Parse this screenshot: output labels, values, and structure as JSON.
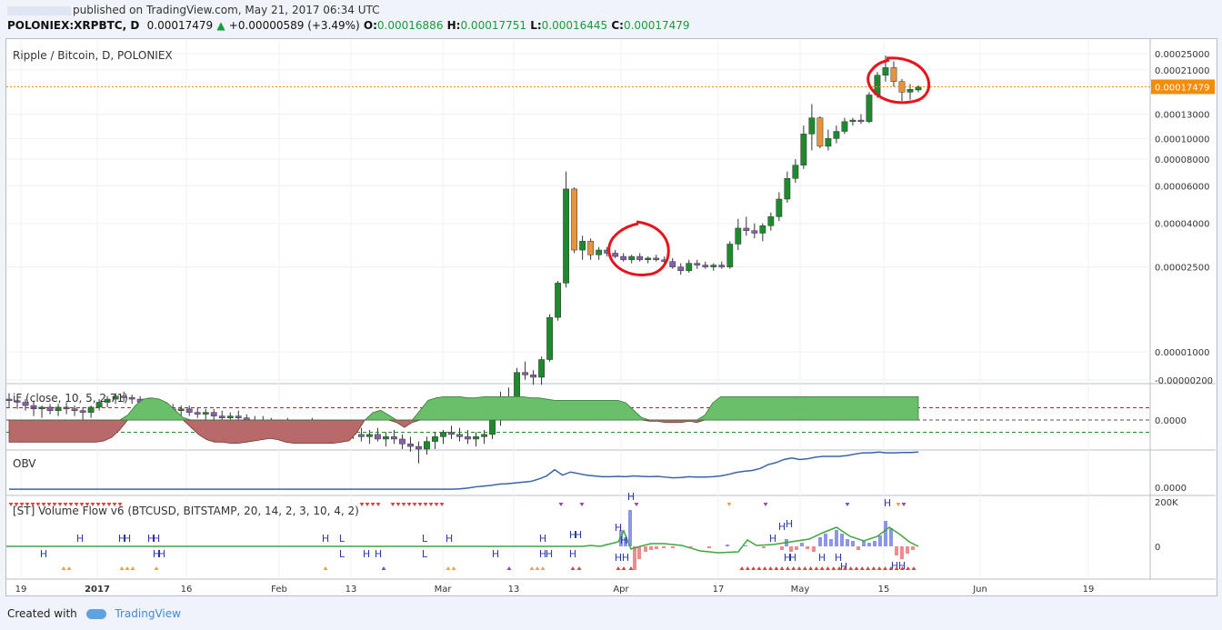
{
  "header": {
    "published": "published on TradingView.com, May 21, 2017 06:34 UTC",
    "symbol": "POLONIEX:XRPBTC, D",
    "last": "0.00017479",
    "change": "+0.00000589 (+3.49%)",
    "o_label": "O:",
    "o": "0.00016886",
    "h_label": "H:",
    "h": "0.00017751",
    "l_label": "L:",
    "l": "0.00016445",
    "c_label": "C:",
    "c": "0.00017479"
  },
  "footer": {
    "created": "Created with",
    "brand": "TradingView"
  },
  "colors": {
    "up": "#1e8a2e",
    "down": "#e8943a",
    "blue": "#4c6fc0",
    "purple": "#8a5fb0",
    "obv": "#3a64a8",
    "vf": "#3da63d",
    "annot": "#e8141c",
    "green_fill": "#6abf6a",
    "red_fill": "#b86a6a",
    "price_badge": "#f48c06"
  },
  "chart_data": [
    {
      "type": "candlestick",
      "title": "Ripple / Bitcoin, D, POLONIEX",
      "y_scale": "log",
      "yticks": [
        "0.00025000",
        "0.00021000",
        "0.00013000",
        "0.00010000",
        "0.00008000",
        "0.00006000",
        "0.00004000",
        "0.00002500",
        "0.00001000",
        "-0.00000200"
      ],
      "ytick_values": [
        0.00025,
        0.00021,
        0.00013,
        0.0001,
        8e-05,
        6e-05,
        4e-05,
        2.5e-05,
        1e-05,
        -2e-06
      ],
      "price_label": "0.00017479",
      "xticks": [
        "19",
        "2017",
        "16",
        "Feb",
        "13",
        "Mar",
        "13",
        "Apr",
        "17",
        "May",
        "15",
        "Jun",
        "19"
      ],
      "annotations": [
        "circle around Apr 2 spike",
        "circle around May 16-17 high"
      ],
      "candles": [
        {
          "o": 6e-06,
          "h": 6.4e-06,
          "l": 5.5e-06,
          "c": 5.9e-06
        },
        {
          "o": 5.9e-06,
          "h": 6.3e-06,
          "l": 5.4e-06,
          "c": 5.8e-06
        },
        {
          "o": 5.8e-06,
          "h": 6e-06,
          "l": 5.3e-06,
          "c": 5.6e-06
        },
        {
          "o": 5.6e-06,
          "h": 5.9e-06,
          "l": 5e-06,
          "c": 5.4e-06
        },
        {
          "o": 5.4e-06,
          "h": 5.6e-06,
          "l": 4.9e-06,
          "c": 5.5e-06
        },
        {
          "o": 5.5e-06,
          "h": 5.7e-06,
          "l": 5.1e-06,
          "c": 5.3e-06
        },
        {
          "o": 5.3e-06,
          "h": 5.7e-06,
          "l": 5e-06,
          "c": 5.5e-06
        },
        {
          "o": 5.5e-06,
          "h": 5.8e-06,
          "l": 5.1e-06,
          "c": 5.4e-06
        },
        {
          "o": 5.4e-06,
          "h": 5.6e-06,
          "l": 5e-06,
          "c": 5.3e-06
        },
        {
          "o": 5.3e-06,
          "h": 5.5e-06,
          "l": 4.5e-06,
          "c": 5.2e-06
        },
        {
          "o": 5.2e-06,
          "h": 5.6e-06,
          "l": 4.9e-06,
          "c": 5.5e-06
        },
        {
          "o": 5.5e-06,
          "h": 6e-06,
          "l": 5.3e-06,
          "c": 5.8e-06
        },
        {
          "o": 5.8e-06,
          "h": 6.2e-06,
          "l": 5.5e-06,
          "c": 6e-06
        },
        {
          "o": 6e-06,
          "h": 6.4e-06,
          "l": 5.7e-06,
          "c": 6.2e-06
        },
        {
          "o": 6.2e-06,
          "h": 6.5e-06,
          "l": 5.8e-06,
          "c": 6.1e-06
        },
        {
          "o": 6.1e-06,
          "h": 6.3e-06,
          "l": 5.7e-06,
          "c": 6e-06
        },
        {
          "o": 6e-06,
          "h": 6.2e-06,
          "l": 5.6e-06,
          "c": 5.8e-06
        },
        {
          "o": 5.8e-06,
          "h": 6.1e-06,
          "l": 5.5e-06,
          "c": 5.7e-06
        },
        {
          "o": 5.7e-06,
          "h": 6e-06,
          "l": 5.4e-06,
          "c": 5.6e-06
        },
        {
          "o": 5.6e-06,
          "h": 5.8e-06,
          "l": 5.2e-06,
          "c": 5.4e-06
        },
        {
          "o": 5.4e-06,
          "h": 5.7e-06,
          "l": 5.1e-06,
          "c": 5.3e-06
        },
        {
          "o": 5.3e-06,
          "h": 5.6e-06,
          "l": 5e-06,
          "c": 5.4e-06
        },
        {
          "o": 5.4e-06,
          "h": 5.6e-06,
          "l": 5e-06,
          "c": 5.2e-06
        },
        {
          "o": 5.2e-06,
          "h": 5.5e-06,
          "l": 4.9e-06,
          "c": 5.1e-06
        },
        {
          "o": 5.1e-06,
          "h": 5.4e-06,
          "l": 4.8e-06,
          "c": 5.2e-06
        },
        {
          "o": 5.2e-06,
          "h": 5.4e-06,
          "l": 4.8e-06,
          "c": 5e-06
        },
        {
          "o": 5e-06,
          "h": 5.3e-06,
          "l": 4.7e-06,
          "c": 4.9e-06
        },
        {
          "o": 4.9e-06,
          "h": 5.2e-06,
          "l": 4.6e-06,
          "c": 5e-06
        },
        {
          "o": 5e-06,
          "h": 5.3e-06,
          "l": 4.7e-06,
          "c": 4.9e-06
        },
        {
          "o": 4.9e-06,
          "h": 5.1e-06,
          "l": 4.5e-06,
          "c": 4.7e-06
        },
        {
          "o": 4.7e-06,
          "h": 5e-06,
          "l": 4.4e-06,
          "c": 4.8e-06
        },
        {
          "o": 4.8e-06,
          "h": 5e-06,
          "l": 4.4e-06,
          "c": 4.6e-06
        },
        {
          "o": 4.6e-06,
          "h": 4.9e-06,
          "l": 4.3e-06,
          "c": 4.5e-06
        },
        {
          "o": 4.5e-06,
          "h": 4.8e-06,
          "l": 4.2e-06,
          "c": 4.6e-06
        },
        {
          "o": 4.6e-06,
          "h": 4.9e-06,
          "l": 4.3e-06,
          "c": 4.4e-06
        },
        {
          "o": 4.4e-06,
          "h": 4.7e-06,
          "l": 4.1e-06,
          "c": 4.5e-06
        },
        {
          "o": 4.5e-06,
          "h": 4.8e-06,
          "l": 4.2e-06,
          "c": 4.6e-06
        },
        {
          "o": 4.6e-06,
          "h": 4.9e-06,
          "l": 4.3e-06,
          "c": 4.4e-06
        },
        {
          "o": 4.4e-06,
          "h": 4.7e-06,
          "l": 4.1e-06,
          "c": 4.3e-06
        },
        {
          "o": 4.3e-06,
          "h": 4.6e-06,
          "l": 4e-06,
          "c": 4.2e-06
        },
        {
          "o": 4.2e-06,
          "h": 4.5e-06,
          "l": 3.9e-06,
          "c": 4.3e-06
        },
        {
          "o": 4.3e-06,
          "h": 4.6e-06,
          "l": 4e-06,
          "c": 4.2e-06
        },
        {
          "o": 4.2e-06,
          "h": 4.5e-06,
          "l": 3.9e-06,
          "c": 4.1e-06
        },
        {
          "o": 4.1e-06,
          "h": 4.4e-06,
          "l": 3.8e-06,
          "c": 4e-06
        },
        {
          "o": 4e-06,
          "h": 4.3e-06,
          "l": 3.7e-06,
          "c": 4.1e-06
        },
        {
          "o": 4.1e-06,
          "h": 4.4e-06,
          "l": 3.8e-06,
          "c": 3.9e-06
        },
        {
          "o": 3.9e-06,
          "h": 4.2e-06,
          "l": 3.6e-06,
          "c": 4e-06
        },
        {
          "o": 4e-06,
          "h": 4.3e-06,
          "l": 3.7e-06,
          "c": 3.9e-06
        },
        {
          "o": 3.9e-06,
          "h": 4.1e-06,
          "l": 3.5e-06,
          "c": 3.7e-06
        },
        {
          "o": 3.7e-06,
          "h": 4e-06,
          "l": 3.4e-06,
          "c": 3.6e-06
        },
        {
          "o": 3.6e-06,
          "h": 3.8e-06,
          "l": 3e-06,
          "c": 3.5e-06
        },
        {
          "o": 3.5e-06,
          "h": 4e-06,
          "l": 3.3e-06,
          "c": 3.8e-06
        },
        {
          "o": 3.8e-06,
          "h": 4.2e-06,
          "l": 3.5e-06,
          "c": 4e-06
        },
        {
          "o": 4e-06,
          "h": 4.3e-06,
          "l": 3.7e-06,
          "c": 4.2e-06
        },
        {
          "o": 4.2e-06,
          "h": 4.5e-06,
          "l": 3.9e-06,
          "c": 4.1e-06
        },
        {
          "o": 4.1e-06,
          "h": 4.4e-06,
          "l": 3.8e-06,
          "c": 4e-06
        },
        {
          "o": 4e-06,
          "h": 4.3e-06,
          "l": 3.7e-06,
          "c": 3.9e-06
        },
        {
          "o": 3.9e-06,
          "h": 4.2e-06,
          "l": 3.6e-06,
          "c": 4e-06
        },
        {
          "o": 4e-06,
          "h": 4.3e-06,
          "l": 3.7e-06,
          "c": 4.1e-06
        },
        {
          "o": 4.1e-06,
          "h": 5e-06,
          "l": 3.9e-06,
          "c": 4.8e-06
        },
        {
          "o": 4.8e-06,
          "h": 6.5e-06,
          "l": 4.5e-06,
          "c": 6e-06
        },
        {
          "o": 6e-06,
          "h": 6.8e-06,
          "l": 5.6e-06,
          "c": 5.8e-06
        },
        {
          "o": 5.8e-06,
          "h": 8.4e-06,
          "l": 5.5e-06,
          "c": 8e-06
        },
        {
          "o": 8e-06,
          "h": 9e-06,
          "l": 7.4e-06,
          "c": 7.8e-06
        },
        {
          "o": 7.8e-06,
          "h": 8.2e-06,
          "l": 7e-06,
          "c": 7.6e-06
        },
        {
          "o": 7.6e-06,
          "h": 9.5e-06,
          "l": 7e-06,
          "c": 9.2e-06
        },
        {
          "o": 9.2e-06,
          "h": 1.5e-05,
          "l": 9e-06,
          "c": 1.45e-05
        },
        {
          "o": 1.45e-05,
          "h": 2.15e-05,
          "l": 1.4e-05,
          "c": 2.1e-05
        },
        {
          "o": 2.1e-05,
          "h": 7e-05,
          "l": 2e-05,
          "c": 5.8e-05
        },
        {
          "o": 5.8e-05,
          "h": 5.9e-05,
          "l": 2.9e-05,
          "c": 3e-05
        },
        {
          "o": 3e-05,
          "h": 3.5e-05,
          "l": 2.7e-05,
          "c": 3.3e-05
        },
        {
          "o": 3.3e-05,
          "h": 3.4e-05,
          "l": 2.7e-05,
          "c": 2.85e-05
        },
        {
          "o": 2.85e-05,
          "h": 3.1e-05,
          "l": 2.7e-05,
          "c": 3e-05
        },
        {
          "o": 3e-05,
          "h": 3.1e-05,
          "l": 2.8e-05,
          "c": 2.9e-05
        },
        {
          "o": 2.9e-05,
          "h": 3e-05,
          "l": 2.75e-05,
          "c": 2.8e-05
        },
        {
          "o": 2.8e-05,
          "h": 2.9e-05,
          "l": 2.65e-05,
          "c": 2.7e-05
        },
        {
          "o": 2.7e-05,
          "h": 2.85e-05,
          "l": 2.6e-05,
          "c": 2.8e-05
        },
        {
          "o": 2.8e-05,
          "h": 2.9e-05,
          "l": 2.65e-05,
          "c": 2.7e-05
        },
        {
          "o": 2.7e-05,
          "h": 2.8e-05,
          "l": 2.6e-05,
          "c": 2.75e-05
        },
        {
          "o": 2.75e-05,
          "h": 2.85e-05,
          "l": 2.65e-05,
          "c": 2.7e-05
        },
        {
          "o": 2.7e-05,
          "h": 2.8e-05,
          "l": 2.55e-05,
          "c": 2.65e-05
        },
        {
          "o": 2.65e-05,
          "h": 2.75e-05,
          "l": 2.45e-05,
          "c": 2.5e-05
        },
        {
          "o": 2.5e-05,
          "h": 2.6e-05,
          "l": 2.3e-05,
          "c": 2.4e-05
        },
        {
          "o": 2.4e-05,
          "h": 2.7e-05,
          "l": 2.35e-05,
          "c": 2.6e-05
        },
        {
          "o": 2.6e-05,
          "h": 2.7e-05,
          "l": 2.45e-05,
          "c": 2.55e-05
        },
        {
          "o": 2.55e-05,
          "h": 2.65e-05,
          "l": 2.45e-05,
          "c": 2.5e-05
        },
        {
          "o": 2.5e-05,
          "h": 2.6e-05,
          "l": 2.4e-05,
          "c": 2.55e-05
        },
        {
          "o": 2.55e-05,
          "h": 2.65e-05,
          "l": 2.45e-05,
          "c": 2.5e-05
        },
        {
          "o": 2.5e-05,
          "h": 3.3e-05,
          "l": 2.45e-05,
          "c": 3.2e-05
        },
        {
          "o": 3.2e-05,
          "h": 4.2e-05,
          "l": 3e-05,
          "c": 3.8e-05
        },
        {
          "o": 3.8e-05,
          "h": 4.3e-05,
          "l": 3.5e-05,
          "c": 3.7e-05
        },
        {
          "o": 3.7e-05,
          "h": 4e-05,
          "l": 3.4e-05,
          "c": 3.6e-05
        },
        {
          "o": 3.6e-05,
          "h": 4e-05,
          "l": 3.3e-05,
          "c": 3.9e-05
        },
        {
          "o": 3.9e-05,
          "h": 4.5e-05,
          "l": 3.7e-05,
          "c": 4.3e-05
        },
        {
          "o": 4.3e-05,
          "h": 5.6e-05,
          "l": 4.1e-05,
          "c": 5.2e-05
        },
        {
          "o": 5.2e-05,
          "h": 7e-05,
          "l": 5e-05,
          "c": 6.5e-05
        },
        {
          "o": 6.5e-05,
          "h": 8e-05,
          "l": 6.2e-05,
          "c": 7.5e-05
        },
        {
          "o": 7.5e-05,
          "h": 0.000115,
          "l": 7.2e-05,
          "c": 0.000105
        },
        {
          "o": 0.000105,
          "h": 0.000145,
          "l": 8.8e-05,
          "c": 0.000125
        },
        {
          "o": 0.000125,
          "h": 0.000127,
          "l": 9e-05,
          "c": 9.2e-05
        },
        {
          "o": 9.2e-05,
          "h": 0.00011,
          "l": 8.8e-05,
          "c": 0.0001
        },
        {
          "o": 0.0001,
          "h": 0.000115,
          "l": 9.5e-05,
          "c": 0.000108
        },
        {
          "o": 0.000108,
          "h": 0.000125,
          "l": 0.000105,
          "c": 0.00012
        },
        {
          "o": 0.00012,
          "h": 0.000125,
          "l": 0.000115,
          "c": 0.000122
        },
        {
          "o": 0.000122,
          "h": 0.00013,
          "l": 0.000117,
          "c": 0.00012
        },
        {
          "o": 0.00012,
          "h": 0.000165,
          "l": 0.000118,
          "c": 0.00016
        },
        {
          "o": 0.00016,
          "h": 0.000205,
          "l": 0.000155,
          "c": 0.000198
        },
        {
          "o": 0.000198,
          "h": 0.000245,
          "l": 0.000185,
          "c": 0.000215
        },
        {
          "o": 0.000215,
          "h": 0.00023,
          "l": 0.000175,
          "c": 0.000185
        },
        {
          "o": 0.000185,
          "h": 0.00019,
          "l": 0.00015,
          "c": 0.000165
        },
        {
          "o": 0.000165,
          "h": 0.00018,
          "l": 0.000152,
          "c": 0.00017
        },
        {
          "o": 0.0001689,
          "h": 0.0001775,
          "l": 0.0001645,
          "c": 0.0001748
        }
      ]
    },
    {
      "type": "area",
      "title": "iF (close, 10, 5, 2.71)",
      "yticks": [
        "0.0000"
      ],
      "levels": [
        0.5,
        0,
        -0.5
      ],
      "values": [
        -0.9,
        -0.9,
        -0.9,
        -0.9,
        -0.9,
        -0.9,
        -0.9,
        -0.9,
        -0.9,
        -0.9,
        -0.9,
        -0.9,
        -0.85,
        -0.7,
        -0.4,
        0.2,
        0.6,
        0.85,
        0.9,
        0.85,
        0.7,
        0.4,
        0.1,
        -0.3,
        -0.6,
        -0.8,
        -0.9,
        -0.9,
        -0.95,
        -0.95,
        -0.9,
        -0.85,
        -0.8,
        -0.75,
        -0.8,
        -0.9,
        -0.95,
        -0.95,
        -0.95,
        -0.95,
        -0.95,
        -0.95,
        -0.9,
        -0.85,
        -0.5,
        0.0,
        0.3,
        0.4,
        0.2,
        -0.1,
        -0.3,
        -0.1,
        0.4,
        0.8,
        0.9,
        0.95,
        0.95,
        0.95,
        0.9,
        0.9,
        0.95,
        0.95,
        0.95,
        0.95,
        0.95,
        0.95,
        0.9,
        0.9,
        0.85,
        0.8,
        0.8,
        0.8,
        0.8,
        0.8,
        0.8,
        0.8,
        0.8,
        0.8,
        0.7,
        0.4,
        0.1,
        -0.05,
        -0.05,
        -0.1,
        -0.1,
        -0.1,
        -0.05,
        -0.1,
        0.2,
        0.7,
        0.95,
        0.95,
        0.95,
        0.95,
        0.95,
        0.95,
        0.95,
        0.95,
        0.95,
        0.95,
        0.95,
        0.95,
        0.95,
        0.95,
        0.95,
        0.95,
        0.95,
        0.95,
        0.95,
        0.95,
        0.95,
        0.95,
        0.95,
        0.95,
        0.95,
        0.95
      ]
    },
    {
      "type": "line",
      "title": "OBV",
      "yticks": [
        "0.0000"
      ],
      "values": [
        0.02,
        0.02,
        0.02,
        0.02,
        0.02,
        0.02,
        0.02,
        0.02,
        0.02,
        0.02,
        0.02,
        0.02,
        0.02,
        0.02,
        0.02,
        0.02,
        0.02,
        0.02,
        0.02,
        0.02,
        0.02,
        0.02,
        0.02,
        0.02,
        0.02,
        0.02,
        0.02,
        0.02,
        0.02,
        0.02,
        0.02,
        0.02,
        0.02,
        0.02,
        0.02,
        0.02,
        0.02,
        0.02,
        0.02,
        0.02,
        0.02,
        0.02,
        0.02,
        0.02,
        0.02,
        0.02,
        0.02,
        0.02,
        0.02,
        0.02,
        0.02,
        0.02,
        0.02,
        0.02,
        0.02,
        0.02,
        0.02,
        0.03,
        0.05,
        0.08,
        0.1,
        0.12,
        0.15,
        0.16,
        0.18,
        0.2,
        0.22,
        0.28,
        0.36,
        0.52,
        0.38,
        0.46,
        0.42,
        0.38,
        0.36,
        0.34,
        0.34,
        0.35,
        0.34,
        0.36,
        0.35,
        0.34,
        0.35,
        0.33,
        0.31,
        0.32,
        0.34,
        0.33,
        0.33,
        0.34,
        0.36,
        0.4,
        0.45,
        0.48,
        0.5,
        0.55,
        0.65,
        0.7,
        0.78,
        0.82,
        0.78,
        0.8,
        0.84,
        0.86,
        0.86,
        0.86,
        0.88,
        0.92,
        0.95,
        0.95,
        0.97,
        0.95,
        0.95,
        0.96,
        0.96,
        0.97
      ]
    },
    {
      "type": "bar_line",
      "title": "[ST] Volume Flow v6 (BTCUSD, BITSTAMP, 20, 14, 2, 3, 10, 4, 2)",
      "yticks": [
        "200K",
        "0"
      ],
      "markers": [
        "H",
        "L"
      ]
    }
  ]
}
